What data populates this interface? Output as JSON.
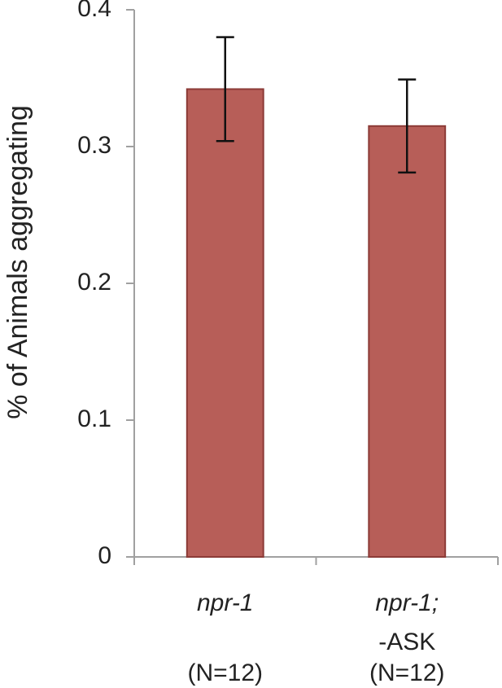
{
  "chart_data": {
    "type": "bar",
    "y_label": "% of Animals aggregating",
    "categories": [
      [
        "npr-1"
      ],
      [
        "npr-1;",
        "-ASK"
      ]
    ],
    "n_labels": [
      "(N=12)",
      "(N=12)"
    ],
    "values": [
      0.342,
      0.315
    ],
    "errors": [
      0.038,
      0.034
    ],
    "color": "#b75e58",
    "edge_color": "#8c3b37",
    "ylim": [
      0,
      0.4
    ],
    "yticks": [
      0,
      0.1,
      0.2,
      0.3,
      0.4
    ],
    "grid": false
  }
}
